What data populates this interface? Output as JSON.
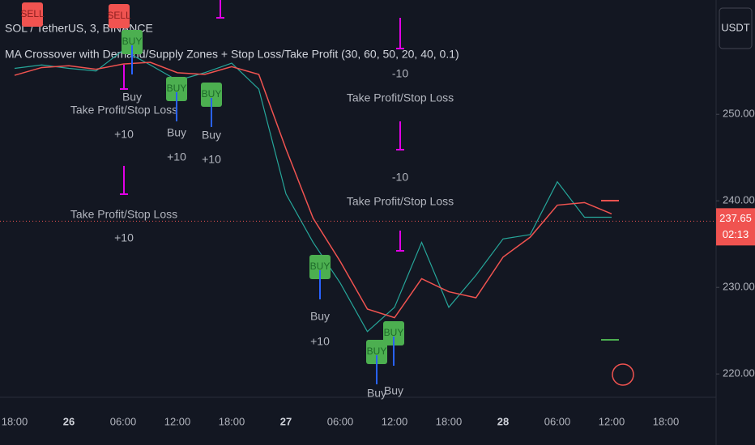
{
  "chart_data": {
    "type": "line",
    "title": "SOL / TetherUS, 3, BINANCE",
    "subtitle": "MA Crossover with Demand/Supply Zones + Stop Loss/Take Profit (30, 60, 50, 20, 40, 0.1)",
    "currency": "USDT",
    "last_price": {
      "value": 237.65,
      "label": "237.65"
    },
    "countdown": "02:13",
    "categories": [
      "18:00",
      null,
      "26",
      null,
      "06:00",
      null,
      "12:00",
      null,
      "18:00",
      null,
      "27",
      null,
      "06:00",
      null,
      "12:00",
      null,
      "18:00",
      null,
      "28",
      null,
      "06:00",
      null,
      "12:00",
      null,
      "18:00"
    ],
    "series": [
      {
        "color": "#26a69a",
        "values": [
          255.3,
          255.7,
          255.3,
          255.0,
          257.4,
          255.7,
          253.9,
          254.8,
          255.9,
          252.9,
          240.8,
          235.2,
          230.5,
          224.9,
          227.7,
          235.2,
          227.7,
          231.4,
          235.6,
          236.1,
          242.2,
          238.1,
          238.1,
          null,
          null
        ]
      },
      {
        "color": "#f05350",
        "values": [
          254.5,
          255.4,
          255.6,
          255.2,
          255.8,
          256.0,
          254.8,
          254.6,
          255.5,
          254.6,
          246.0,
          238.0,
          233.0,
          227.5,
          226.5,
          231.0,
          229.5,
          228.8,
          233.5,
          235.8,
          239.5,
          239.8,
          238.5,
          null,
          null
        ]
      }
    ],
    "ylim": [
      217.4,
      263.2
    ],
    "yticks": [
      {
        "value": 220,
        "label": "220.00"
      },
      {
        "value": 230,
        "label": "230.00"
      },
      {
        "value": 240,
        "label": "240.00"
      },
      {
        "value": 250,
        "label": "250.00"
      }
    ],
    "annotations": [
      "-10",
      "Take Profit/Stop Loss",
      "-10",
      "Take Profit/Stop Loss",
      "Take Profit/Stop Loss",
      "+10",
      "Buy",
      "+10",
      "Buy",
      "+10",
      "Take Profit/Stop Loss",
      "+10",
      "Buy",
      "+10",
      "Buy",
      "Buy",
      "Buy"
    ],
    "buy_signals": [
      "BUY",
      "BUY",
      "BUY",
      "BUY",
      "BUY",
      "BUY"
    ],
    "sell_signals": [
      "SELL",
      "SELL"
    ]
  }
}
